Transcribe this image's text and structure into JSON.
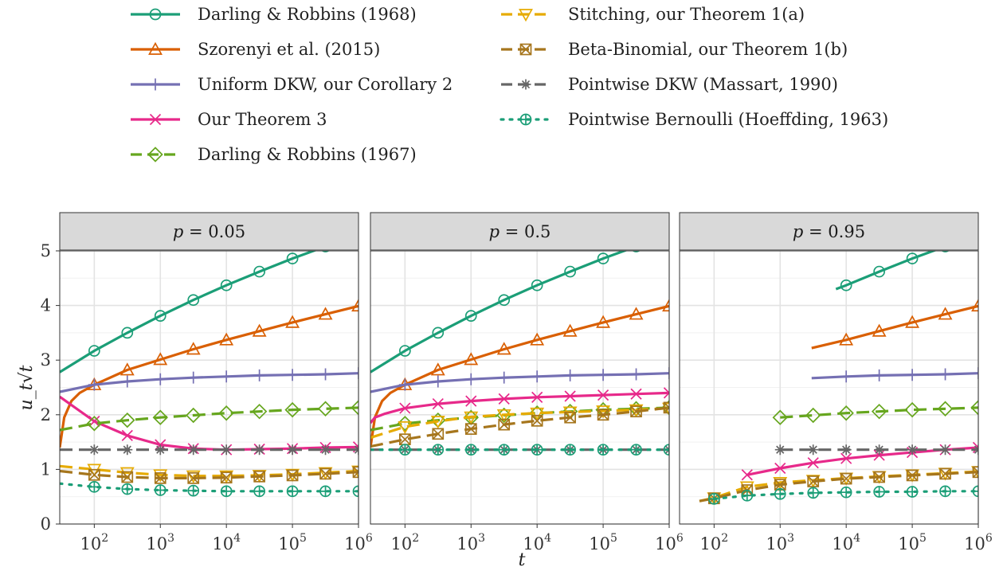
{
  "chart_data": {
    "type": "line",
    "xlabel": "t",
    "ylabel": "u_t√t",
    "x_scale": "log10",
    "xlim": [
      30,
      1000000
    ],
    "ylim": [
      0,
      5
    ],
    "x_ticks": [
      100,
      1000,
      10000,
      100000,
      1000000
    ],
    "x_tick_labels": [
      {
        "base": "10",
        "exp": "2"
      },
      {
        "base": "10",
        "exp": "3"
      },
      {
        "base": "10",
        "exp": "4"
      },
      {
        "base": "10",
        "exp": "5"
      },
      {
        "base": "10",
        "exp": "6"
      }
    ],
    "y_ticks": [
      0,
      1,
      2,
      3,
      4,
      5
    ],
    "y_tick_labels": [
      "0",
      "1",
      "2",
      "3",
      "4",
      "5"
    ],
    "grid": true,
    "legend_placement": "top",
    "legend": [
      {
        "name": "Darling & Robbins (1968)",
        "color": "#1b9e77",
        "marker": "circle",
        "dash": "solid"
      },
      {
        "name": "Szorenyi et al. (2015)",
        "color": "#d95f02",
        "marker": "triangle",
        "dash": "solid"
      },
      {
        "name": "Uniform DKW, our Corollary 2",
        "color": "#7570b3",
        "marker": "plus",
        "dash": "solid"
      },
      {
        "name": "Our Theorem 3",
        "color": "#e7298a",
        "marker": "x",
        "dash": "solid"
      },
      {
        "name": "Darling & Robbins (1967)",
        "color": "#66a61e",
        "marker": "diamond",
        "dash": "dashed"
      },
      {
        "name": "Stitching, our Theorem 1(a)",
        "color": "#e6ab02",
        "marker": "triangle-down",
        "dash": "dashed"
      },
      {
        "name": "Beta-Binomial, our Theorem 1(b)",
        "color": "#a6761d",
        "marker": "box-x",
        "dash": "dashed"
      },
      {
        "name": "Pointwise DKW (Massart, 1990)",
        "color": "#666666",
        "marker": "asterisk",
        "dash": "dashed"
      },
      {
        "name": "Pointwise Bernoulli (Hoeffding, 1963)",
        "color": "#1b9e77",
        "marker": "circle-plus",
        "dash": "dotted"
      }
    ],
    "panels": [
      {
        "title": "p = 0.05",
        "p_label": "p",
        "p_value": "0.05",
        "series": [
          {
            "name": "Darling & Robbins (1968)",
            "t": [
              30,
              100,
              316,
              1000,
              3162,
              10000,
              31623,
              100000,
              316228,
              1000000
            ],
            "values": [
              2.78,
              3.17,
              3.5,
              3.81,
              4.1,
              4.37,
              4.62,
              4.86,
              5.08,
              5.3
            ]
          },
          {
            "name": "Szorenyi et al. (2015)",
            "t": [
              30,
              35,
              45,
              60,
              100,
              316,
              1000,
              3162,
              10000,
              31623,
              100000,
              316228,
              1000000
            ],
            "values": [
              1.4,
              1.95,
              2.25,
              2.4,
              2.55,
              2.82,
              3.01,
              3.2,
              3.37,
              3.53,
              3.69,
              3.84,
              3.99
            ]
          },
          {
            "name": "Uniform DKW, our Corollary 2",
            "t": [
              30,
              100,
              316,
              1000,
              3162,
              10000,
              31623,
              100000,
              316228,
              1000000
            ],
            "values": [
              2.42,
              2.55,
              2.61,
              2.65,
              2.68,
              2.7,
              2.72,
              2.73,
              2.74,
              2.76
            ]
          },
          {
            "name": "Our Theorem 3",
            "t": [
              30,
              100,
              316,
              1000,
              3162,
              10000,
              31623,
              100000,
              316228,
              1000000
            ],
            "values": [
              2.33,
              1.88,
              1.62,
              1.45,
              1.38,
              1.36,
              1.37,
              1.38,
              1.4,
              1.41
            ]
          },
          {
            "name": "Darling & Robbins (1967)",
            "t": [
              30,
              100,
              316,
              1000,
              3162,
              10000,
              31623,
              100000,
              316228,
              1000000
            ],
            "values": [
              1.72,
              1.84,
              1.9,
              1.95,
              1.99,
              2.03,
              2.06,
              2.09,
              2.11,
              2.13
            ]
          },
          {
            "name": "Stitching, our Theorem 1(a)",
            "t": [
              30,
              100,
              316,
              1000,
              3162,
              10000,
              31623,
              100000,
              316228,
              1000000
            ],
            "values": [
              1.06,
              1.0,
              0.94,
              0.9,
              0.88,
              0.88,
              0.89,
              0.91,
              0.94,
              0.97
            ]
          },
          {
            "name": "Beta-Binomial, our Theorem 1(b)",
            "t": [
              30,
              100,
              316,
              1000,
              3162,
              10000,
              31623,
              100000,
              316228,
              1000000
            ],
            "values": [
              0.97,
              0.9,
              0.86,
              0.84,
              0.84,
              0.85,
              0.87,
              0.89,
              0.92,
              0.95
            ]
          },
          {
            "name": "Pointwise DKW (Massart, 1990)",
            "t": [
              30,
              100,
              316,
              1000,
              3162,
              10000,
              31623,
              100000,
              316228,
              1000000
            ],
            "values": [
              1.36,
              1.36,
              1.36,
              1.36,
              1.36,
              1.36,
              1.36,
              1.36,
              1.36,
              1.36
            ]
          },
          {
            "name": "Pointwise Bernoulli (Hoeffding, 1963)",
            "t": [
              30,
              100,
              316,
              1000,
              3162,
              10000,
              31623,
              100000,
              316228,
              1000000
            ],
            "values": [
              0.74,
              0.68,
              0.64,
              0.62,
              0.61,
              0.6,
              0.6,
              0.6,
              0.6,
              0.6
            ]
          }
        ]
      },
      {
        "title": "p = 0.5",
        "p_label": "p",
        "p_value": "0.5",
        "series": [
          {
            "name": "Darling & Robbins (1968)",
            "t": [
              30,
              100,
              316,
              1000,
              3162,
              10000,
              31623,
              100000,
              316228,
              1000000
            ],
            "values": [
              2.78,
              3.17,
              3.5,
              3.81,
              4.1,
              4.37,
              4.62,
              4.86,
              5.08,
              5.3
            ]
          },
          {
            "name": "Szorenyi et al. (2015)",
            "t": [
              30,
              35,
              45,
              60,
              100,
              316,
              1000,
              3162,
              10000,
              31623,
              100000,
              316228,
              1000000
            ],
            "values": [
              1.4,
              1.95,
              2.25,
              2.4,
              2.55,
              2.82,
              3.01,
              3.2,
              3.37,
              3.53,
              3.69,
              3.84,
              3.99
            ]
          },
          {
            "name": "Uniform DKW, our Corollary 2",
            "t": [
              30,
              100,
              316,
              1000,
              3162,
              10000,
              31623,
              100000,
              316228,
              1000000
            ],
            "values": [
              2.42,
              2.55,
              2.61,
              2.65,
              2.68,
              2.7,
              2.72,
              2.73,
              2.74,
              2.76
            ]
          },
          {
            "name": "Our Theorem 3",
            "t": [
              30,
              35,
              50,
              100,
              316,
              1000,
              3162,
              10000,
              31623,
              100000,
              316228,
              1000000
            ],
            "values": [
              1.85,
              1.95,
              2.02,
              2.12,
              2.2,
              2.25,
              2.29,
              2.32,
              2.34,
              2.36,
              2.38,
              2.4
            ]
          },
          {
            "name": "Darling & Robbins (1967)",
            "t": [
              30,
              100,
              316,
              1000,
              3162,
              10000,
              31623,
              100000,
              316228,
              1000000
            ],
            "values": [
              1.72,
              1.84,
              1.9,
              1.95,
              1.99,
              2.03,
              2.06,
              2.09,
              2.11,
              2.13
            ]
          },
          {
            "name": "Stitching, our Theorem 1(a)",
            "t": [
              30,
              100,
              316,
              1000,
              3162,
              10000,
              31623,
              100000,
              316228,
              1000000
            ],
            "values": [
              1.58,
              1.78,
              1.88,
              1.96,
              2.0,
              2.03,
              2.05,
              2.07,
              2.09,
              2.12
            ]
          },
          {
            "name": "Beta-Binomial, our Theorem 1(b)",
            "t": [
              30,
              100,
              316,
              1000,
              3162,
              10000,
              31623,
              100000,
              316228,
              1000000
            ],
            "values": [
              1.42,
              1.55,
              1.65,
              1.74,
              1.82,
              1.89,
              1.95,
              2.0,
              2.06,
              2.13
            ]
          },
          {
            "name": "Pointwise DKW (Massart, 1990)",
            "t": [
              30,
              100,
              316,
              1000,
              3162,
              10000,
              31623,
              100000,
              316228,
              1000000
            ],
            "values": [
              1.36,
              1.36,
              1.36,
              1.36,
              1.36,
              1.36,
              1.36,
              1.36,
              1.36,
              1.36
            ]
          },
          {
            "name": "Pointwise Bernoulli (Hoeffding, 1963)",
            "t": [
              30,
              100,
              316,
              1000,
              3162,
              10000,
              31623,
              100000,
              316228,
              1000000
            ],
            "values": [
              1.36,
              1.36,
              1.36,
              1.36,
              1.36,
              1.36,
              1.36,
              1.36,
              1.36,
              1.36
            ]
          }
        ]
      },
      {
        "title": "p = 0.95",
        "p_label": "p",
        "p_value": "0.95",
        "series": [
          {
            "name": "Darling & Robbins (1968)",
            "t": [
              7000,
              10000,
              31623,
              100000,
              316228,
              1000000
            ],
            "values": [
              4.3,
              4.37,
              4.62,
              4.86,
              5.08,
              5.3
            ]
          },
          {
            "name": "Szorenyi et al. (2015)",
            "t": [
              3000,
              10000,
              31623,
              100000,
              316228,
              1000000
            ],
            "values": [
              3.22,
              3.37,
              3.53,
              3.69,
              3.84,
              3.99
            ]
          },
          {
            "name": "Uniform DKW, our Corollary 2",
            "t": [
              3000,
              10000,
              31623,
              100000,
              316228,
              1000000
            ],
            "values": [
              2.67,
              2.7,
              2.72,
              2.73,
              2.74,
              2.76
            ]
          },
          {
            "name": "Our Theorem 3",
            "t": [
              316,
              1000,
              3162,
              10000,
              31623,
              100000,
              316228,
              1000000
            ],
            "values": [
              0.9,
              1.02,
              1.12,
              1.2,
              1.26,
              1.31,
              1.36,
              1.4
            ]
          },
          {
            "name": "Darling & Robbins (1967)",
            "t": [
              1000,
              3162,
              10000,
              31623,
              100000,
              316228,
              1000000
            ],
            "values": [
              1.95,
              1.99,
              2.03,
              2.06,
              2.09,
              2.11,
              2.13
            ]
          },
          {
            "name": "Stitching, our Theorem 1(a)",
            "t": [
              60,
              100,
              316,
              1000,
              3162,
              10000,
              31623,
              100000,
              316228,
              1000000
            ],
            "values": [
              0.42,
              0.48,
              0.68,
              0.76,
              0.8,
              0.84,
              0.87,
              0.9,
              0.93,
              0.96
            ]
          },
          {
            "name": "Beta-Binomial, our Theorem 1(b)",
            "t": [
              60,
              100,
              316,
              1000,
              3162,
              10000,
              31623,
              100000,
              316228,
              1000000
            ],
            "values": [
              0.42,
              0.47,
              0.62,
              0.72,
              0.78,
              0.83,
              0.86,
              0.89,
              0.92,
              0.95
            ]
          },
          {
            "name": "Pointwise DKW (Massart, 1990)",
            "t": [
              1000,
              3162,
              10000,
              31623,
              100000,
              316228,
              1000000
            ],
            "values": [
              1.36,
              1.36,
              1.36,
              1.36,
              1.36,
              1.36,
              1.36
            ]
          },
          {
            "name": "Pointwise Bernoulli (Hoeffding, 1963)",
            "t": [
              100,
              316,
              1000,
              3162,
              10000,
              31623,
              100000,
              316228,
              1000000
            ],
            "values": [
              0.46,
              0.52,
              0.55,
              0.57,
              0.58,
              0.59,
              0.59,
              0.6,
              0.6
            ]
          }
        ]
      }
    ]
  }
}
